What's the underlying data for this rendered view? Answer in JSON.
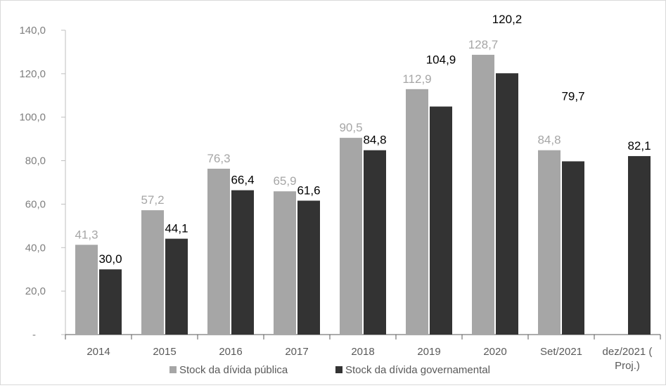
{
  "chart_data": {
    "type": "bar",
    "categories": [
      "2014",
      "2015",
      "2016",
      "2017",
      "2018",
      "2019",
      "2020",
      "Set/2021",
      "dez/2021 ( Proj.)"
    ],
    "category_lines": [
      [
        "2014"
      ],
      [
        "2015"
      ],
      [
        "2016"
      ],
      [
        "2017"
      ],
      [
        "2018"
      ],
      [
        "2019"
      ],
      [
        "2020"
      ],
      [
        "Set/2021"
      ],
      [
        "dez/2021 (",
        "Proj.)"
      ]
    ],
    "series": [
      {
        "name": "Stock da dívida pública",
        "color": "#a6a6a6",
        "label_color": "#a6a6a6",
        "values": [
          41.3,
          57.2,
          76.3,
          65.9,
          90.5,
          112.9,
          128.7,
          84.8,
          null
        ],
        "labels": [
          "41,3",
          "57,2",
          "76,3",
          "65,9",
          "90,5",
          "112,9",
          "128,7",
          "84,8",
          ""
        ]
      },
      {
        "name": "Stock da dívida governamental",
        "color": "#333333",
        "label_color": "#000000",
        "values": [
          30.0,
          44.1,
          66.4,
          61.6,
          84.8,
          104.9,
          120.2,
          79.7,
          82.1
        ],
        "labels": [
          "30,0",
          "44,1",
          "66,4",
          "61,6",
          "84,8",
          "104,9",
          "120,2",
          "79,7",
          "82,1"
        ]
      }
    ],
    "ylim": [
      0,
      140
    ],
    "yticks": [
      0,
      20,
      40,
      60,
      80,
      100,
      120,
      140
    ],
    "ytick_labels": [
      "-",
      "20,0",
      "40,0",
      "60,0",
      "80,0",
      "100,0",
      "120,0",
      "140,0"
    ],
    "title": "",
    "xlabel": "",
    "ylabel": "",
    "legend_position": "bottom",
    "grid": false
  }
}
